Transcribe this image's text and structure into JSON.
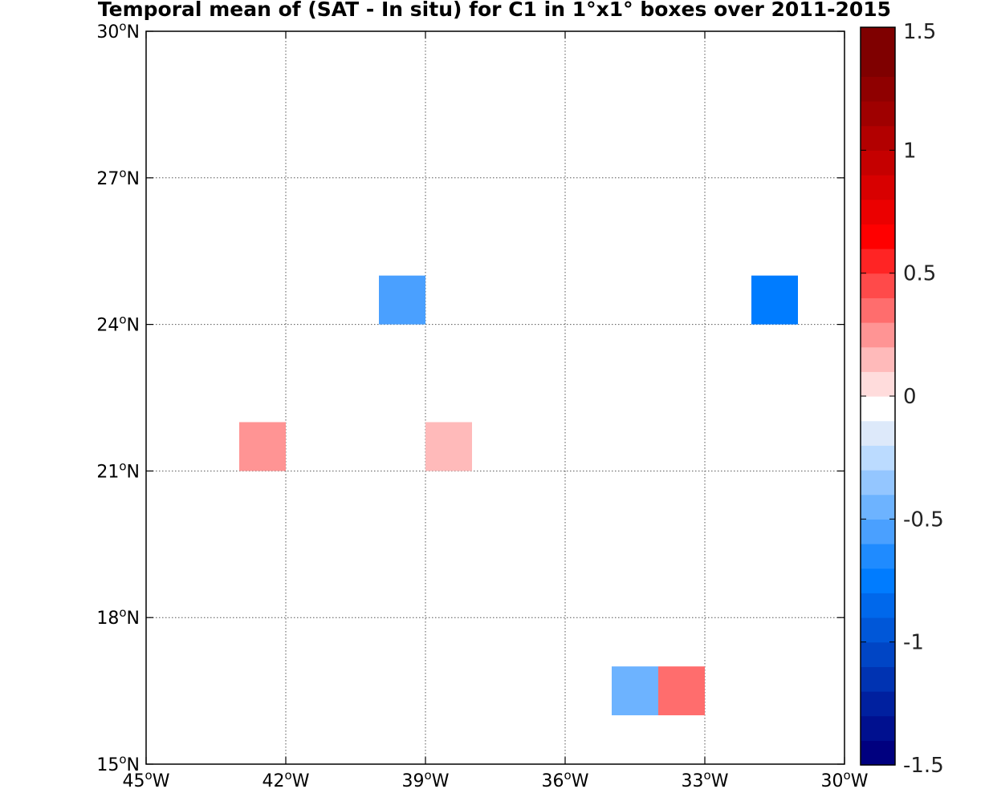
{
  "chart_data": {
    "type": "heatmap",
    "title": "Temporal mean of (SAT - In situ) for C1 in 1°x1° boxes over 2011-2015",
    "xlim": [
      -45,
      -30
    ],
    "ylim": [
      15,
      30
    ],
    "grid": true,
    "x_ticks": [
      {
        "value": -45,
        "label": "45",
        "suffix": "W"
      },
      {
        "value": -42,
        "label": "42",
        "suffix": "W"
      },
      {
        "value": -39,
        "label": "39",
        "suffix": "W"
      },
      {
        "value": -36,
        "label": "36",
        "suffix": "W"
      },
      {
        "value": -33,
        "label": "33",
        "suffix": "W"
      },
      {
        "value": -30,
        "label": "30",
        "suffix": "W"
      }
    ],
    "y_ticks": [
      {
        "value": 15,
        "label": "15",
        "suffix": "N"
      },
      {
        "value": 18,
        "label": "18",
        "suffix": "N"
      },
      {
        "value": 21,
        "label": "21",
        "suffix": "N"
      },
      {
        "value": 24,
        "label": "24",
        "suffix": "N"
      },
      {
        "value": 27,
        "label": "27",
        "suffix": "N"
      },
      {
        "value": 30,
        "label": "30",
        "suffix": "N"
      }
    ],
    "cells": [
      {
        "lon": -40,
        "lat": 24,
        "value": -0.55
      },
      {
        "lon": -32,
        "lat": 24,
        "value": -0.75
      },
      {
        "lon": -43,
        "lat": 21,
        "value": 0.25
      },
      {
        "lon": -39,
        "lat": 21,
        "value": 0.15
      },
      {
        "lon": -35,
        "lat": 16,
        "value": -0.45
      },
      {
        "lon": -34,
        "lat": 16,
        "value": 0.35
      }
    ],
    "colorbar": {
      "min": -1.5,
      "max": 1.5,
      "ticks": [
        {
          "value": 1.5,
          "label": "1.5"
        },
        {
          "value": 1,
          "label": "1"
        },
        {
          "value": 0.5,
          "label": "0.5"
        },
        {
          "value": 0,
          "label": "0"
        },
        {
          "value": -0.5,
          "label": "-0.5"
        },
        {
          "value": -1,
          "label": "-1"
        },
        {
          "value": -1.5,
          "label": "-1.5"
        }
      ],
      "colors": [
        "#00007f",
        "#00108f",
        "#00209f",
        "#0033b2",
        "#0045c5",
        "#0057d8",
        "#0068eb",
        "#007cff",
        "#1f8bff",
        "#4aa0ff",
        "#6db3ff",
        "#94c6ff",
        "#bbdbff",
        "#dde9fa",
        "#ffffff",
        "#ffdcdc",
        "#ffbaba",
        "#ff9494",
        "#ff6d6d",
        "#ff4a4a",
        "#ff2424",
        "#ff0000",
        "#eb0000",
        "#d80000",
        "#c50000",
        "#b20000",
        "#9f0000",
        "#8f0000",
        "#7f0000",
        "#7f0000"
      ]
    }
  }
}
